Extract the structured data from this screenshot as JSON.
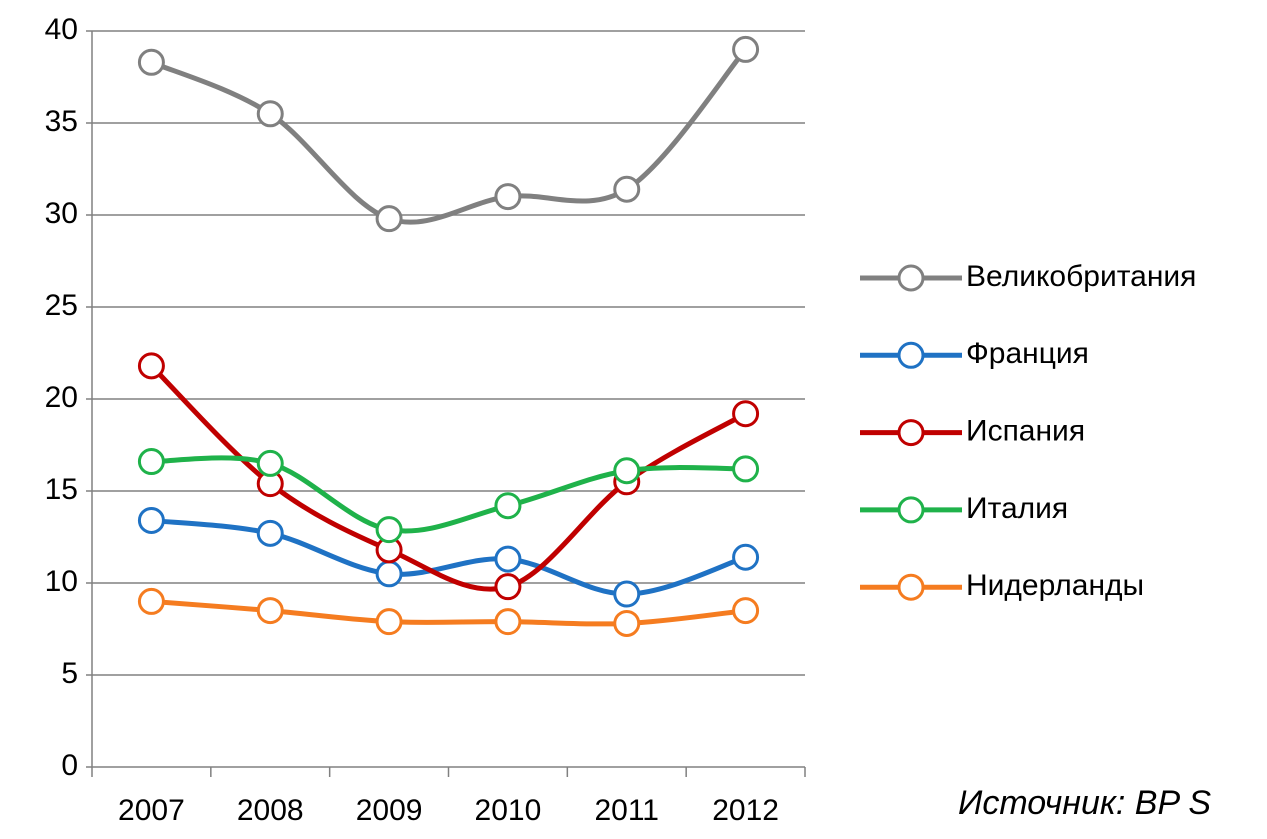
{
  "chart_data": {
    "type": "line",
    "categories": [
      "2007",
      "2008",
      "2009",
      "2010",
      "2011",
      "2012"
    ],
    "series": [
      {
        "name": "Великобритания",
        "color": "#808080",
        "values": [
          38.3,
          35.5,
          29.8,
          31.0,
          31.4,
          39.0
        ]
      },
      {
        "name": "Франция",
        "color": "#1f72c4",
        "values": [
          13.4,
          12.7,
          10.5,
          11.3,
          9.4,
          11.4
        ]
      },
      {
        "name": "Испания",
        "color": "#c00000",
        "values": [
          21.8,
          15.4,
          11.8,
          9.8,
          15.5,
          19.2
        ]
      },
      {
        "name": "Италия",
        "color": "#1fb24a",
        "values": [
          16.6,
          16.5,
          12.9,
          14.2,
          16.1,
          16.2
        ]
      },
      {
        "name": "Нидерланды",
        "color": "#f57c20",
        "values": [
          9.0,
          8.5,
          7.9,
          7.9,
          7.8,
          8.5
        ]
      }
    ],
    "ylim": [
      0,
      40
    ],
    "yticks": [
      0,
      5,
      10,
      15,
      20,
      25,
      30,
      35,
      40
    ],
    "grid": true,
    "legend": "right",
    "annotations": [
      "Источник: BP S"
    ]
  }
}
